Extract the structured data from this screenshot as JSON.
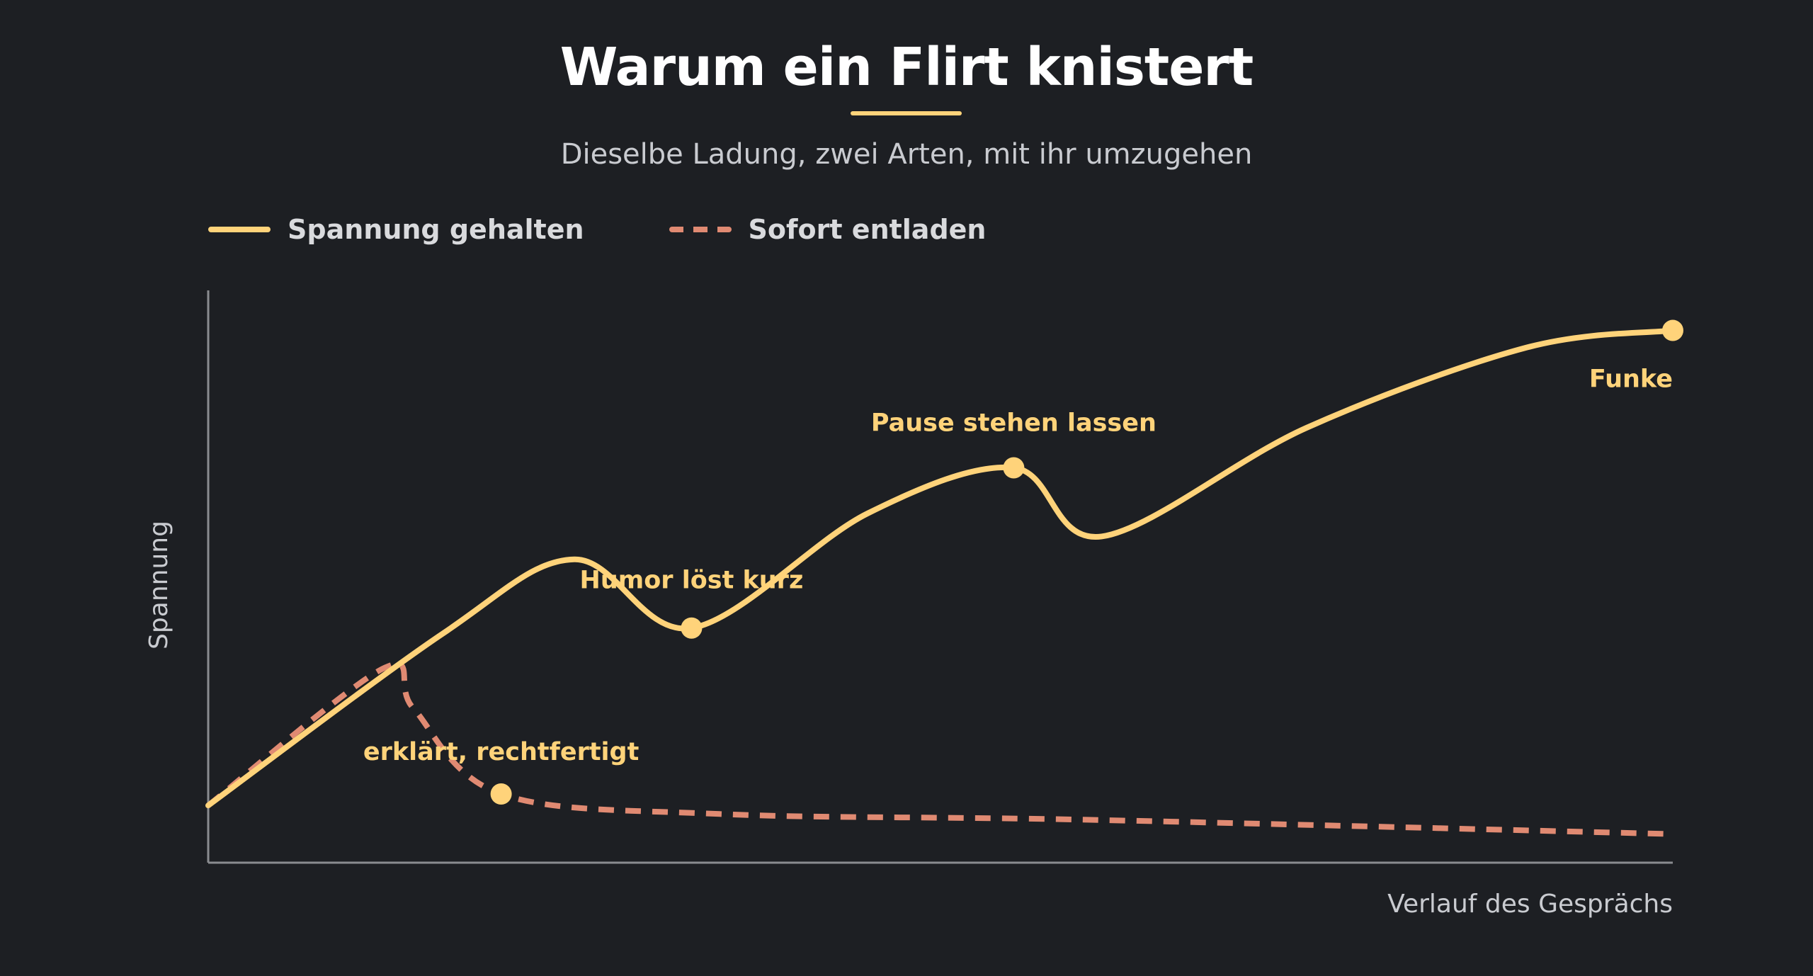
{
  "colors": {
    "background": "#1d1f23",
    "held": "#ffd37a",
    "released": "#e08a72",
    "axis": "#8a8c90",
    "axis_label": "#c9cbd0"
  },
  "chart_data": {
    "type": "line",
    "title": "Warum ein Flirt knistert",
    "subtitle": "Dieselbe Ladung, zwei Arten, mit ihr umzugehen",
    "xlabel": "Verlauf des Gesprächs",
    "ylabel": "Spannung",
    "xlim": [
      0,
      100
    ],
    "ylim": [
      0,
      100
    ],
    "grid": false,
    "legend_position": "top-left",
    "series": [
      {
        "name": "Spannung gehalten",
        "style": "solid",
        "points": [
          [
            0,
            10
          ],
          [
            16,
            40
          ],
          [
            25,
            53
          ],
          [
            33,
            41
          ],
          [
            45,
            61
          ],
          [
            55,
            69
          ],
          [
            61,
            57
          ],
          [
            75,
            76
          ],
          [
            90,
            90
          ],
          [
            100,
            93
          ]
        ],
        "markers": [
          {
            "x": 33,
            "y": 41,
            "label": "Humor löst kurz"
          },
          {
            "x": 55,
            "y": 69,
            "label": "Pause stehen lassen"
          },
          {
            "x": 100,
            "y": 93,
            "label": "Funke"
          }
        ]
      },
      {
        "name": "Sofort entladen",
        "style": "dashed",
        "points": [
          [
            0,
            10
          ],
          [
            12,
            34
          ],
          [
            14,
            27
          ],
          [
            20,
            12
          ],
          [
            35,
            8.5
          ],
          [
            60,
            7.5
          ],
          [
            100,
            5
          ]
        ],
        "markers": [
          {
            "x": 20,
            "y": 12,
            "label": "erklärt, rechtfertigt"
          }
        ]
      }
    ]
  }
}
